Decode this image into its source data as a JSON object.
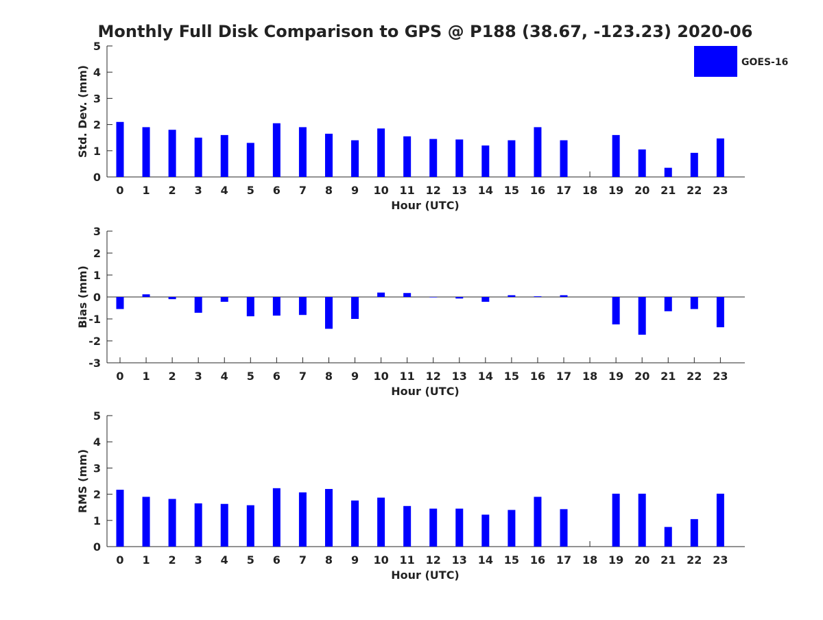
{
  "title": "Monthly Full Disk Comparison to GPS @ P188 (38.67, -123.23) 2020-06",
  "legend": {
    "label": "GOES-16",
    "color": "#0000ff",
    "placement": "top-right"
  },
  "chart_data": [
    {
      "type": "bar",
      "xlabel": "Hour (UTC)",
      "ylabel": "Std. Dev. (mm)",
      "ylim": [
        0,
        5
      ],
      "yticks": [
        "0",
        "1",
        "2",
        "3",
        "4",
        "5"
      ],
      "categories": [
        "0",
        "1",
        "2",
        "3",
        "4",
        "5",
        "6",
        "7",
        "8",
        "9",
        "10",
        "11",
        "12",
        "13",
        "14",
        "15",
        "16",
        "17",
        "18",
        "19",
        "20",
        "21",
        "22",
        "23"
      ],
      "series": [
        {
          "name": "GOES-16",
          "color": "#0000ff",
          "values": [
            2.1,
            1.9,
            1.8,
            1.5,
            1.6,
            1.3,
            2.05,
            1.9,
            1.65,
            1.4,
            1.85,
            1.55,
            1.45,
            1.43,
            1.2,
            1.4,
            1.9,
            1.4,
            null,
            1.6,
            1.05,
            0.35,
            0.92,
            1.47
          ]
        }
      ]
    },
    {
      "type": "bar",
      "xlabel": "Hour (UTC)",
      "ylabel": "Bias (mm)",
      "ylim": [
        -3,
        3
      ],
      "yticks": [
        "-3",
        "-2",
        "-1",
        "0",
        "1",
        "2",
        "3"
      ],
      "categories": [
        "0",
        "1",
        "2",
        "3",
        "4",
        "5",
        "6",
        "7",
        "8",
        "9",
        "10",
        "11",
        "12",
        "13",
        "14",
        "15",
        "16",
        "17",
        "18",
        "19",
        "20",
        "21",
        "22",
        "23"
      ],
      "series": [
        {
          "name": "GOES-16",
          "color": "#0000ff",
          "values": [
            -0.55,
            0.12,
            -0.1,
            -0.72,
            -0.22,
            -0.88,
            -0.85,
            -0.82,
            -1.45,
            -1.0,
            0.2,
            0.18,
            -0.02,
            -0.07,
            -0.22,
            0.08,
            0.03,
            0.08,
            null,
            -1.25,
            -1.72,
            -0.65,
            -0.55,
            -1.38
          ]
        }
      ]
    },
    {
      "type": "bar",
      "xlabel": "Hour (UTC)",
      "ylabel": "RMS (mm)",
      "ylim": [
        0,
        5
      ],
      "yticks": [
        "0",
        "1",
        "2",
        "3",
        "4",
        "5"
      ],
      "categories": [
        "0",
        "1",
        "2",
        "3",
        "4",
        "5",
        "6",
        "7",
        "8",
        "9",
        "10",
        "11",
        "12",
        "13",
        "14",
        "15",
        "16",
        "17",
        "18",
        "19",
        "20",
        "21",
        "22",
        "23"
      ],
      "series": [
        {
          "name": "GOES-16",
          "color": "#0000ff",
          "values": [
            2.17,
            1.9,
            1.82,
            1.65,
            1.63,
            1.58,
            2.23,
            2.07,
            2.2,
            1.76,
            1.87,
            1.55,
            1.45,
            1.45,
            1.22,
            1.4,
            1.9,
            1.43,
            null,
            2.02,
            2.02,
            0.75,
            1.05,
            2.02
          ]
        }
      ]
    }
  ]
}
